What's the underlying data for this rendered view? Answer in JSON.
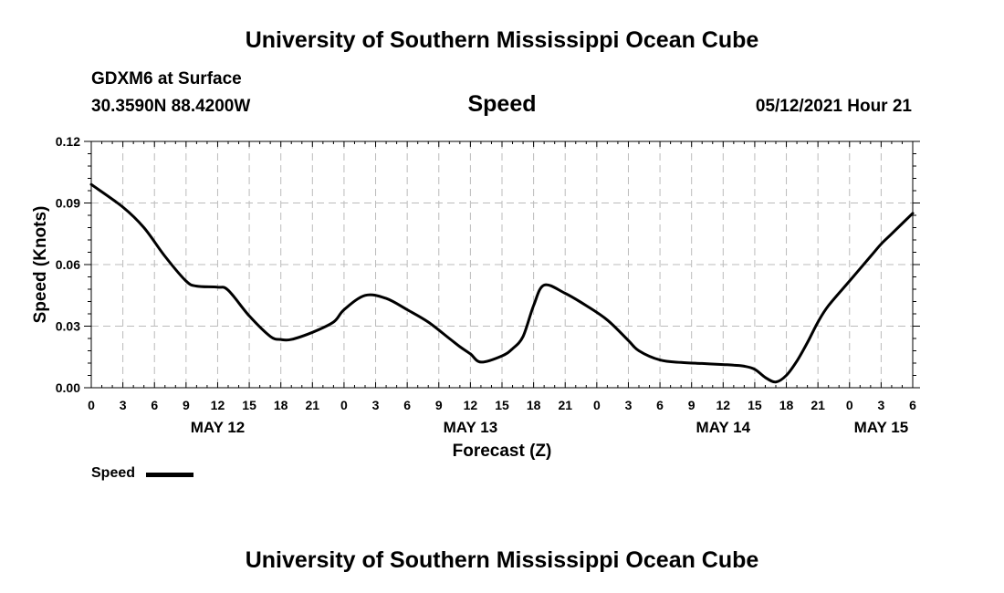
{
  "header": {
    "title_top": "University of Southern Mississippi Ocean Cube",
    "station": "GDXM6 at Surface",
    "coords": "30.3590N  88.4200W",
    "timestamp": "05/12/2021 Hour 21",
    "title_bottom": "University of Southern Mississippi Ocean Cube"
  },
  "legend": {
    "label": "Speed"
  },
  "chart_data": {
    "type": "line",
    "title": "Speed",
    "xlabel": "Forecast (Z)",
    "ylabel": "Speed (Knots)",
    "ylim": [
      0,
      0.12
    ],
    "xlim": [
      0,
      78
    ],
    "grid": true,
    "line_color": "#000000",
    "y_ticks": [
      {
        "value": 0,
        "label": "0.00"
      },
      {
        "value": 0.03,
        "label": "0.03"
      },
      {
        "value": 0.06,
        "label": "0.06"
      },
      {
        "value": 0.09,
        "label": "0.09"
      },
      {
        "value": 0.12,
        "label": "0.12"
      }
    ],
    "x_ticks": [
      {
        "hour": 0,
        "label": "0"
      },
      {
        "hour": 3,
        "label": "3"
      },
      {
        "hour": 6,
        "label": "6"
      },
      {
        "hour": 9,
        "label": "9"
      },
      {
        "hour": 12,
        "label": "12"
      },
      {
        "hour": 15,
        "label": "15"
      },
      {
        "hour": 18,
        "label": "18"
      },
      {
        "hour": 21,
        "label": "21"
      },
      {
        "hour": 24,
        "label": "0"
      },
      {
        "hour": 27,
        "label": "3"
      },
      {
        "hour": 30,
        "label": "6"
      },
      {
        "hour": 33,
        "label": "9"
      },
      {
        "hour": 36,
        "label": "12"
      },
      {
        "hour": 39,
        "label": "15"
      },
      {
        "hour": 42,
        "label": "18"
      },
      {
        "hour": 45,
        "label": "21"
      },
      {
        "hour": 48,
        "label": "0"
      },
      {
        "hour": 51,
        "label": "3"
      },
      {
        "hour": 54,
        "label": "6"
      },
      {
        "hour": 57,
        "label": "9"
      },
      {
        "hour": 60,
        "label": "12"
      },
      {
        "hour": 63,
        "label": "15"
      },
      {
        "hour": 66,
        "label": "18"
      },
      {
        "hour": 69,
        "label": "21"
      },
      {
        "hour": 72,
        "label": "0"
      },
      {
        "hour": 75,
        "label": "3"
      },
      {
        "hour": 78,
        "label": "6"
      }
    ],
    "date_labels": [
      {
        "hour": 12,
        "label": "MAY 12"
      },
      {
        "hour": 36,
        "label": "MAY 13"
      },
      {
        "hour": 60,
        "label": "MAY 14"
      },
      {
        "hour": 75,
        "label": "MAY 15"
      }
    ],
    "series": [
      {
        "name": "Speed",
        "x": [
          0,
          3,
          5,
          7,
          9,
          10,
          12,
          13,
          15,
          17,
          18,
          19,
          21,
          23,
          24,
          26,
          28,
          30,
          32,
          34,
          35,
          36,
          37,
          39,
          40,
          41,
          42,
          43,
          45,
          47,
          49,
          51,
          52,
          54,
          56,
          58,
          60,
          61,
          62,
          63,
          64,
          65,
          66,
          67,
          68,
          69,
          70,
          72,
          74,
          75,
          76,
          78
        ],
        "values": [
          0.099,
          0.088,
          0.078,
          0.064,
          0.052,
          0.0495,
          0.049,
          0.0475,
          0.035,
          0.025,
          0.0235,
          0.0235,
          0.027,
          0.032,
          0.038,
          0.045,
          0.0435,
          0.038,
          0.032,
          0.024,
          0.02,
          0.0165,
          0.0125,
          0.0155,
          0.019,
          0.025,
          0.04,
          0.05,
          0.046,
          0.04,
          0.033,
          0.023,
          0.018,
          0.0135,
          0.0123,
          0.0118,
          0.0113,
          0.011,
          0.0105,
          0.009,
          0.005,
          0.0028,
          0.006,
          0.013,
          0.022,
          0.032,
          0.04,
          0.052,
          0.064,
          0.07,
          0.075,
          0.085
        ]
      }
    ]
  }
}
